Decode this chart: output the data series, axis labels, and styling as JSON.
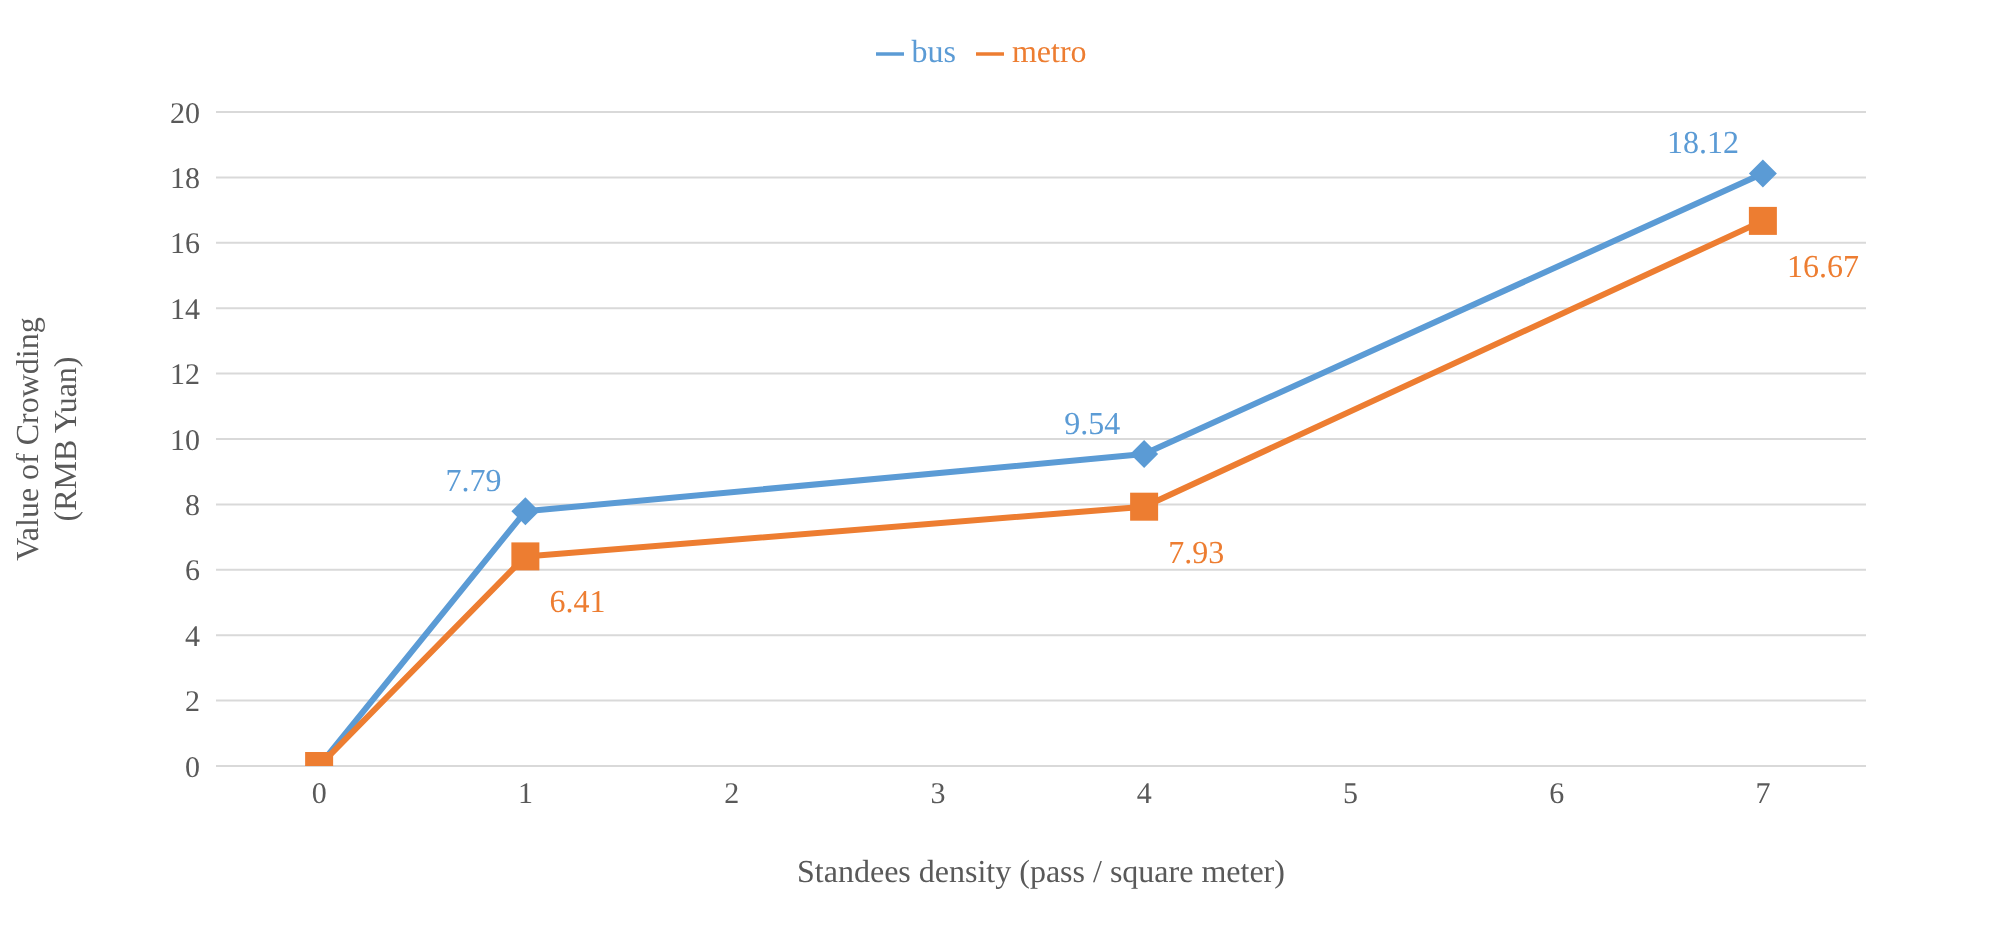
{
  "chart_data": {
    "type": "line",
    "xlabel": "Standees density (pass / square meter)",
    "ylabel": "Value of Crowding\n(RMB Yuan)",
    "x": [
      0,
      1,
      4,
      7
    ],
    "xlim": [
      -0.5,
      7.5
    ],
    "xticks": [
      0,
      1,
      2,
      3,
      4,
      5,
      6,
      7
    ],
    "ylim": [
      0,
      20
    ],
    "yticks": [
      0,
      2,
      4,
      6,
      8,
      10,
      12,
      14,
      16,
      18,
      20
    ],
    "grid": "y",
    "legend": "top",
    "series": [
      {
        "name": "bus",
        "color": "#5b9bd5",
        "marker": "diamond",
        "values": [
          0,
          7.79,
          9.54,
          18.12
        ],
        "value_labels": [
          null,
          "7.79",
          "9.54",
          "18.12"
        ]
      },
      {
        "name": "metro",
        "color": "#ed7d31",
        "marker": "square",
        "values": [
          0,
          6.41,
          7.93,
          16.67
        ],
        "value_labels": [
          null,
          "6.41",
          "7.93",
          "16.67"
        ]
      }
    ]
  }
}
